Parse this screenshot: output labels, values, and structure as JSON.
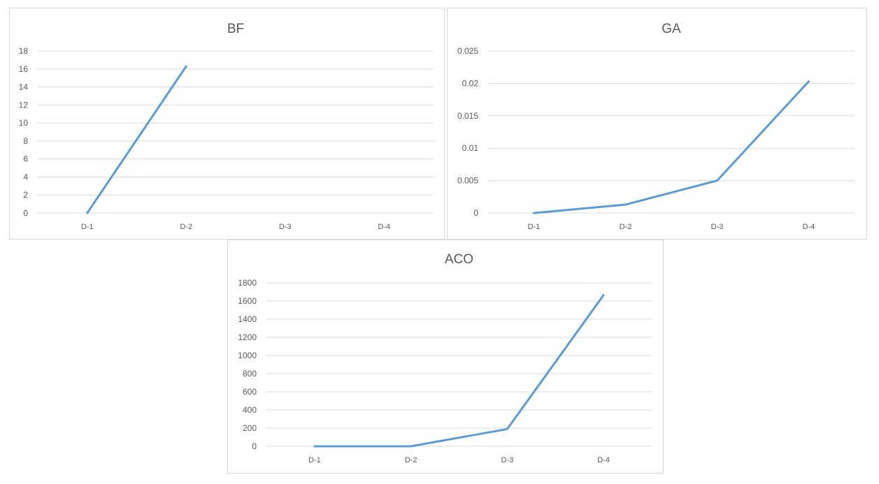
{
  "colors": {
    "series": "#5b9bd5",
    "grid": "#d9d9d9",
    "text": "#595959"
  },
  "chart_data": [
    {
      "type": "line",
      "title": "BF",
      "categories": [
        "D-1",
        "D-2",
        "D-3",
        "D-4"
      ],
      "series": [
        {
          "values": [
            0,
            16.3,
            null,
            null
          ]
        }
      ],
      "yticks": [
        "0",
        "2",
        "4",
        "6",
        "8",
        "10",
        "12",
        "14",
        "16",
        "18"
      ],
      "ylim": [
        0,
        18
      ],
      "xlabel": "",
      "ylabel": "",
      "grid": true,
      "legend": "none"
    },
    {
      "type": "line",
      "title": "GA",
      "categories": [
        "D-1",
        "D-2",
        "D-3",
        "D-4"
      ],
      "series": [
        {
          "values": [
            0,
            0.0013,
            0.005,
            0.0203
          ]
        }
      ],
      "yticks": [
        "0",
        "0.005",
        "0.01",
        "0.015",
        "0.02",
        "0.025"
      ],
      "ylim": [
        0,
        0.025
      ],
      "xlabel": "",
      "ylabel": "",
      "grid": true,
      "legend": "none"
    },
    {
      "type": "line",
      "title": "ACO",
      "categories": [
        "D-1",
        "D-2",
        "D-3",
        "D-4"
      ],
      "series": [
        {
          "values": [
            0,
            0,
            190,
            1665
          ]
        }
      ],
      "yticks": [
        "0",
        "200",
        "400",
        "600",
        "800",
        "1000",
        "1200",
        "1400",
        "1600",
        "1800"
      ],
      "ylim": [
        0,
        1800
      ],
      "xlabel": "",
      "ylabel": "",
      "grid": true,
      "legend": "none"
    }
  ]
}
